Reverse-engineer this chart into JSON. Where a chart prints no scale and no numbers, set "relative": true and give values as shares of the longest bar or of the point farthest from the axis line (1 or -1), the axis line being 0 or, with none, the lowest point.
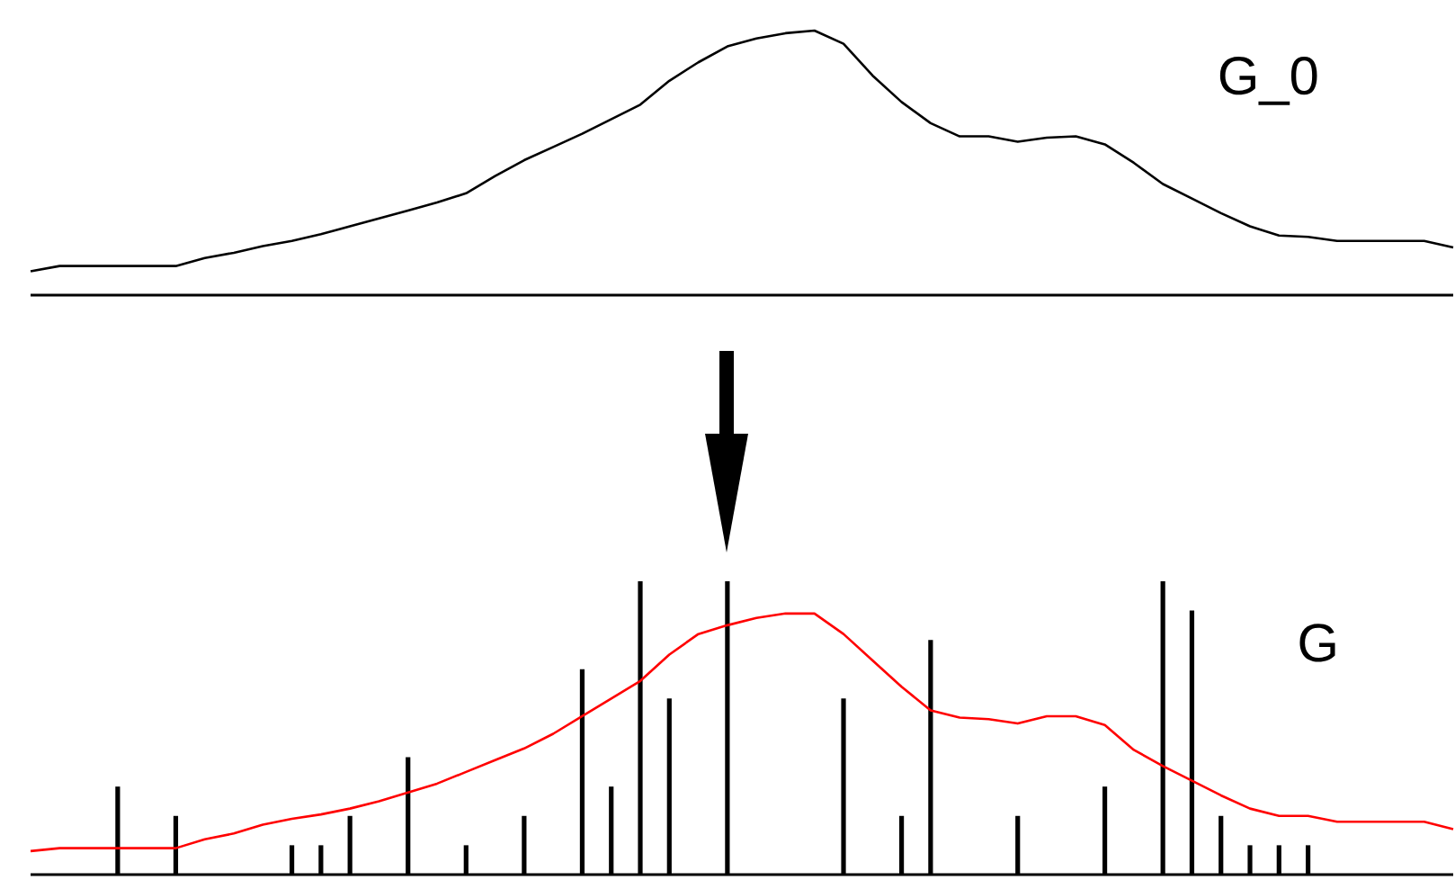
{
  "chart_data": [
    {
      "type": "line",
      "relative": true,
      "categories": [
        null,
        null,
        null,
        null,
        null,
        null,
        null,
        null,
        null,
        null,
        null,
        null,
        null,
        null,
        null,
        null,
        null,
        null,
        null,
        null,
        null,
        null,
        null,
        null,
        null,
        null,
        null,
        null,
        null,
        null,
        null,
        null,
        null,
        null,
        null,
        null,
        null,
        null,
        null,
        null,
        null,
        null,
        null,
        null,
        null,
        null,
        null,
        null,
        null,
        null
      ],
      "series": [
        {
          "name": "G_0",
          "color": "#000000",
          "values": [
            0.09,
            0.11,
            0.11,
            0.11,
            0.11,
            0.11,
            0.14,
            0.16,
            0.185,
            0.205,
            0.23,
            0.26,
            0.29,
            0.32,
            0.35,
            0.385,
            0.45,
            0.51,
            0.56,
            0.61,
            0.665,
            0.72,
            0.81,
            0.88,
            0.94,
            0.97,
            0.99,
            1.0,
            0.95,
            0.83,
            0.73,
            0.65,
            0.6,
            0.6,
            0.58,
            0.595,
            0.6,
            0.57,
            0.5,
            0.42,
            0.365,
            0.31,
            0.26,
            0.225,
            0.22,
            0.205,
            0.205,
            0.205,
            0.205,
            0.18
          ]
        }
      ]
    },
    {
      "type": "line",
      "relative": true,
      "categories": [
        null,
        null,
        null,
        null,
        null,
        null,
        null,
        null,
        null,
        null,
        null,
        null,
        null,
        null,
        null,
        null,
        null,
        null,
        null,
        null,
        null,
        null,
        null,
        null,
        null,
        null,
        null,
        null,
        null,
        null,
        null,
        null,
        null,
        null,
        null,
        null,
        null,
        null,
        null,
        null,
        null,
        null,
        null,
        null,
        null,
        null,
        null,
        null,
        null,
        null
      ],
      "series": [
        {
          "name": "G",
          "color": "#ff0000",
          "values": [
            0.08,
            0.09,
            0.09,
            0.09,
            0.09,
            0.09,
            0.12,
            0.14,
            0.17,
            0.19,
            0.205,
            0.225,
            0.25,
            0.28,
            0.31,
            0.35,
            0.39,
            0.43,
            0.48,
            0.54,
            0.6,
            0.66,
            0.75,
            0.82,
            0.85,
            0.875,
            0.89,
            0.89,
            0.82,
            0.73,
            0.64,
            0.56,
            0.535,
            0.53,
            0.515,
            0.54,
            0.54,
            0.51,
            0.425,
            0.37,
            0.32,
            0.27,
            0.225,
            0.2,
            0.2,
            0.18,
            0.18,
            0.18,
            0.18,
            0.155
          ]
        },
        {
          "type": "bar",
          "color": "#000000",
          "values": [
            null,
            null,
            null,
            0.3,
            null,
            0.2,
            null,
            null,
            null,
            0.1,
            0.1,
            0.2,
            null,
            0.4,
            null,
            0.1,
            null,
            0.2,
            null,
            0.7,
            0.3,
            1.0,
            0.6,
            null,
            1.0,
            null,
            null,
            null,
            0.6,
            null,
            0.2,
            0.8,
            null,
            null,
            0.2,
            null,
            null,
            0.3,
            null,
            1.0,
            0.9,
            0.2,
            0.1,
            0.1,
            0.1,
            null,
            null,
            null,
            null,
            null
          ]
        }
      ]
    }
  ]
}
